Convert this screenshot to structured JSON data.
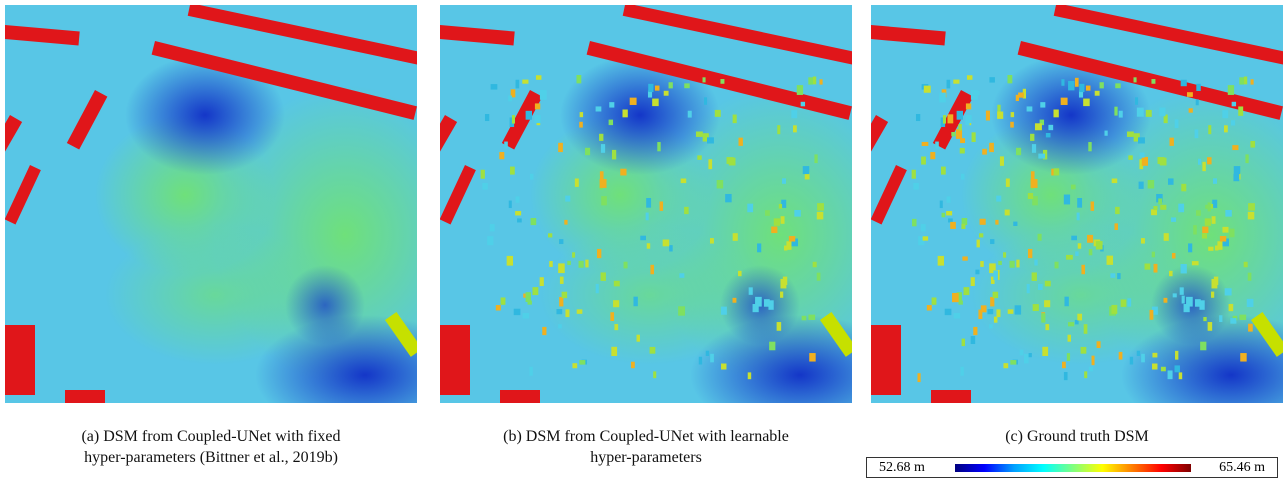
{
  "figure": {
    "panels": [
      {
        "caption": [
          "(a)  DSM from Coupled-UNet with fixed",
          "hyper-parameters (Bittner et al., 2019b)"
        ]
      },
      {
        "caption": [
          "(b)  DSM from Coupled-UNet with learnable",
          "hyper-parameters"
        ]
      },
      {
        "caption": [
          "(c)  Ground truth DSM"
        ]
      }
    ],
    "colorbar": {
      "min_label": "52.68 m",
      "max_label": "65.46 m"
    }
  }
}
